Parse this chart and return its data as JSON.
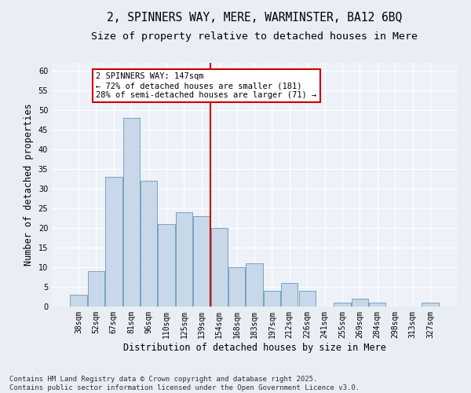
{
  "title": "2, SPINNERS WAY, MERE, WARMINSTER, BA12 6BQ",
  "subtitle": "Size of property relative to detached houses in Mere",
  "xlabel": "Distribution of detached houses by size in Mere",
  "ylabel": "Number of detached properties",
  "categories": [
    "38sqm",
    "52sqm",
    "67sqm",
    "81sqm",
    "96sqm",
    "110sqm",
    "125sqm",
    "139sqm",
    "154sqm",
    "168sqm",
    "183sqm",
    "197sqm",
    "212sqm",
    "226sqm",
    "241sqm",
    "255sqm",
    "269sqm",
    "284sqm",
    "298sqm",
    "313sqm",
    "327sqm"
  ],
  "values": [
    3,
    9,
    33,
    48,
    32,
    21,
    24,
    23,
    20,
    10,
    11,
    4,
    6,
    4,
    0,
    1,
    2,
    1,
    0,
    0,
    1
  ],
  "bar_color": "#c8d8e8",
  "bar_edge_color": "#6699bb",
  "vline_x": 7.5,
  "vline_color": "#cc0000",
  "ylim": [
    0,
    62
  ],
  "yticks": [
    0,
    5,
    10,
    15,
    20,
    25,
    30,
    35,
    40,
    45,
    50,
    55,
    60
  ],
  "annotation_title": "2 SPINNERS WAY: 147sqm",
  "annotation_line1": "← 72% of detached houses are smaller (181)",
  "annotation_line2": "28% of semi-detached houses are larger (71) →",
  "annotation_box_color": "#ffffff",
  "annotation_box_edge": "#cc0000",
  "footer_line1": "Contains HM Land Registry data © Crown copyright and database right 2025.",
  "footer_line2": "Contains public sector information licensed under the Open Government Licence v3.0.",
  "background_color": "#e8eef4",
  "plot_background": "#eef2f8",
  "grid_color": "#ffffff",
  "title_fontsize": 10.5,
  "subtitle_fontsize": 9.5,
  "axis_label_fontsize": 8.5,
  "tick_fontsize": 7,
  "annotation_fontsize": 7.5,
  "footer_fontsize": 6.5
}
